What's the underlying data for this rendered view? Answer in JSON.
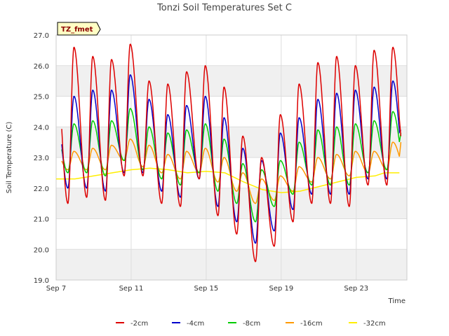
{
  "chart_data": {
    "type": "line",
    "title": "Tonzi Soil Temperatures Set C",
    "xlabel": "Time",
    "ylabel": "Soil Temperature (C)",
    "badge": "TZ_fmet",
    "xlim": [
      7,
      25.7
    ],
    "ylim": [
      19.0,
      27.0
    ],
    "x_ticks": [
      {
        "value": 7,
        "label": "Sep 7"
      },
      {
        "value": 11,
        "label": "Sep 11"
      },
      {
        "value": 15,
        "label": "Sep 15"
      },
      {
        "value": 19,
        "label": "Sep 19"
      },
      {
        "value": 23,
        "label": "Sep 23"
      }
    ],
    "y_ticks": [
      19.0,
      20.0,
      21.0,
      22.0,
      23.0,
      24.0,
      25.0,
      26.0,
      27.0
    ],
    "grid": true,
    "legend_position": "bottom",
    "series": [
      {
        "name": "-2cm",
        "color": "#dd0000",
        "daily_max": [
          26.6,
          26.3,
          26.2,
          26.7,
          25.5,
          25.4,
          25.8,
          26.0,
          25.3,
          23.7,
          23.0,
          24.4,
          25.4,
          26.1,
          26.3,
          26.0,
          26.5,
          26.6
        ],
        "daily_min": [
          21.5,
          21.7,
          21.6,
          22.4,
          22.4,
          21.5,
          21.4,
          22.3,
          21.1,
          20.5,
          19.6,
          20.1,
          20.9,
          21.5,
          21.5,
          21.4,
          22.1,
          22.1
        ],
        "end_value": 23.7
      },
      {
        "name": "-4cm",
        "color": "#0000cc",
        "daily_max": [
          25.0,
          25.2,
          25.2,
          25.7,
          24.9,
          24.4,
          24.7,
          25.0,
          24.3,
          23.3,
          22.9,
          23.8,
          24.3,
          24.9,
          25.1,
          25.2,
          25.3,
          25.5
        ],
        "daily_min": [
          22.0,
          22.0,
          21.9,
          22.5,
          22.5,
          21.9,
          21.7,
          22.3,
          21.4,
          20.9,
          20.2,
          20.6,
          21.3,
          21.8,
          21.8,
          21.8,
          22.3,
          22.3
        ],
        "end_value": 23.9
      },
      {
        "name": "-8cm",
        "color": "#00cc00",
        "daily_max": [
          24.1,
          24.2,
          24.2,
          24.6,
          24.0,
          23.8,
          23.9,
          24.1,
          23.6,
          22.8,
          22.6,
          22.9,
          23.5,
          23.9,
          24.0,
          24.1,
          24.2,
          24.5
        ],
        "daily_min": [
          22.5,
          22.5,
          22.4,
          22.9,
          22.6,
          22.3,
          22.1,
          22.5,
          21.9,
          21.5,
          20.9,
          21.4,
          21.8,
          22.1,
          22.1,
          22.1,
          22.5,
          22.6
        ],
        "end_value": 23.8
      },
      {
        "name": "-16cm",
        "color": "#ff9900",
        "daily_max": [
          23.2,
          23.3,
          23.4,
          23.6,
          23.4,
          23.1,
          23.2,
          23.3,
          23.0,
          22.5,
          22.3,
          22.4,
          22.7,
          23.0,
          23.1,
          23.2,
          23.2,
          23.5
        ],
        "daily_min": [
          22.6,
          22.6,
          22.6,
          22.9,
          22.7,
          22.5,
          22.3,
          22.5,
          22.2,
          21.9,
          21.5,
          21.6,
          21.9,
          22.2,
          22.3,
          22.4,
          22.5,
          22.6
        ],
        "end_value": 23.5
      },
      {
        "name": "-32cm",
        "color": "#ffee00",
        "points": [
          [
            7,
            22.3
          ],
          [
            8,
            22.3
          ],
          [
            9,
            22.4
          ],
          [
            10,
            22.5
          ],
          [
            11,
            22.6
          ],
          [
            12,
            22.65
          ],
          [
            13,
            22.6
          ],
          [
            14,
            22.5
          ],
          [
            15,
            22.55
          ],
          [
            16,
            22.5
          ],
          [
            17,
            22.2
          ],
          [
            18,
            21.95
          ],
          [
            19,
            21.85
          ],
          [
            20,
            21.9
          ],
          [
            21,
            22.05
          ],
          [
            22,
            22.2
          ],
          [
            23,
            22.35
          ],
          [
            24,
            22.4
          ],
          [
            24.5,
            22.5
          ],
          [
            25.3,
            22.5
          ]
        ]
      }
    ]
  }
}
